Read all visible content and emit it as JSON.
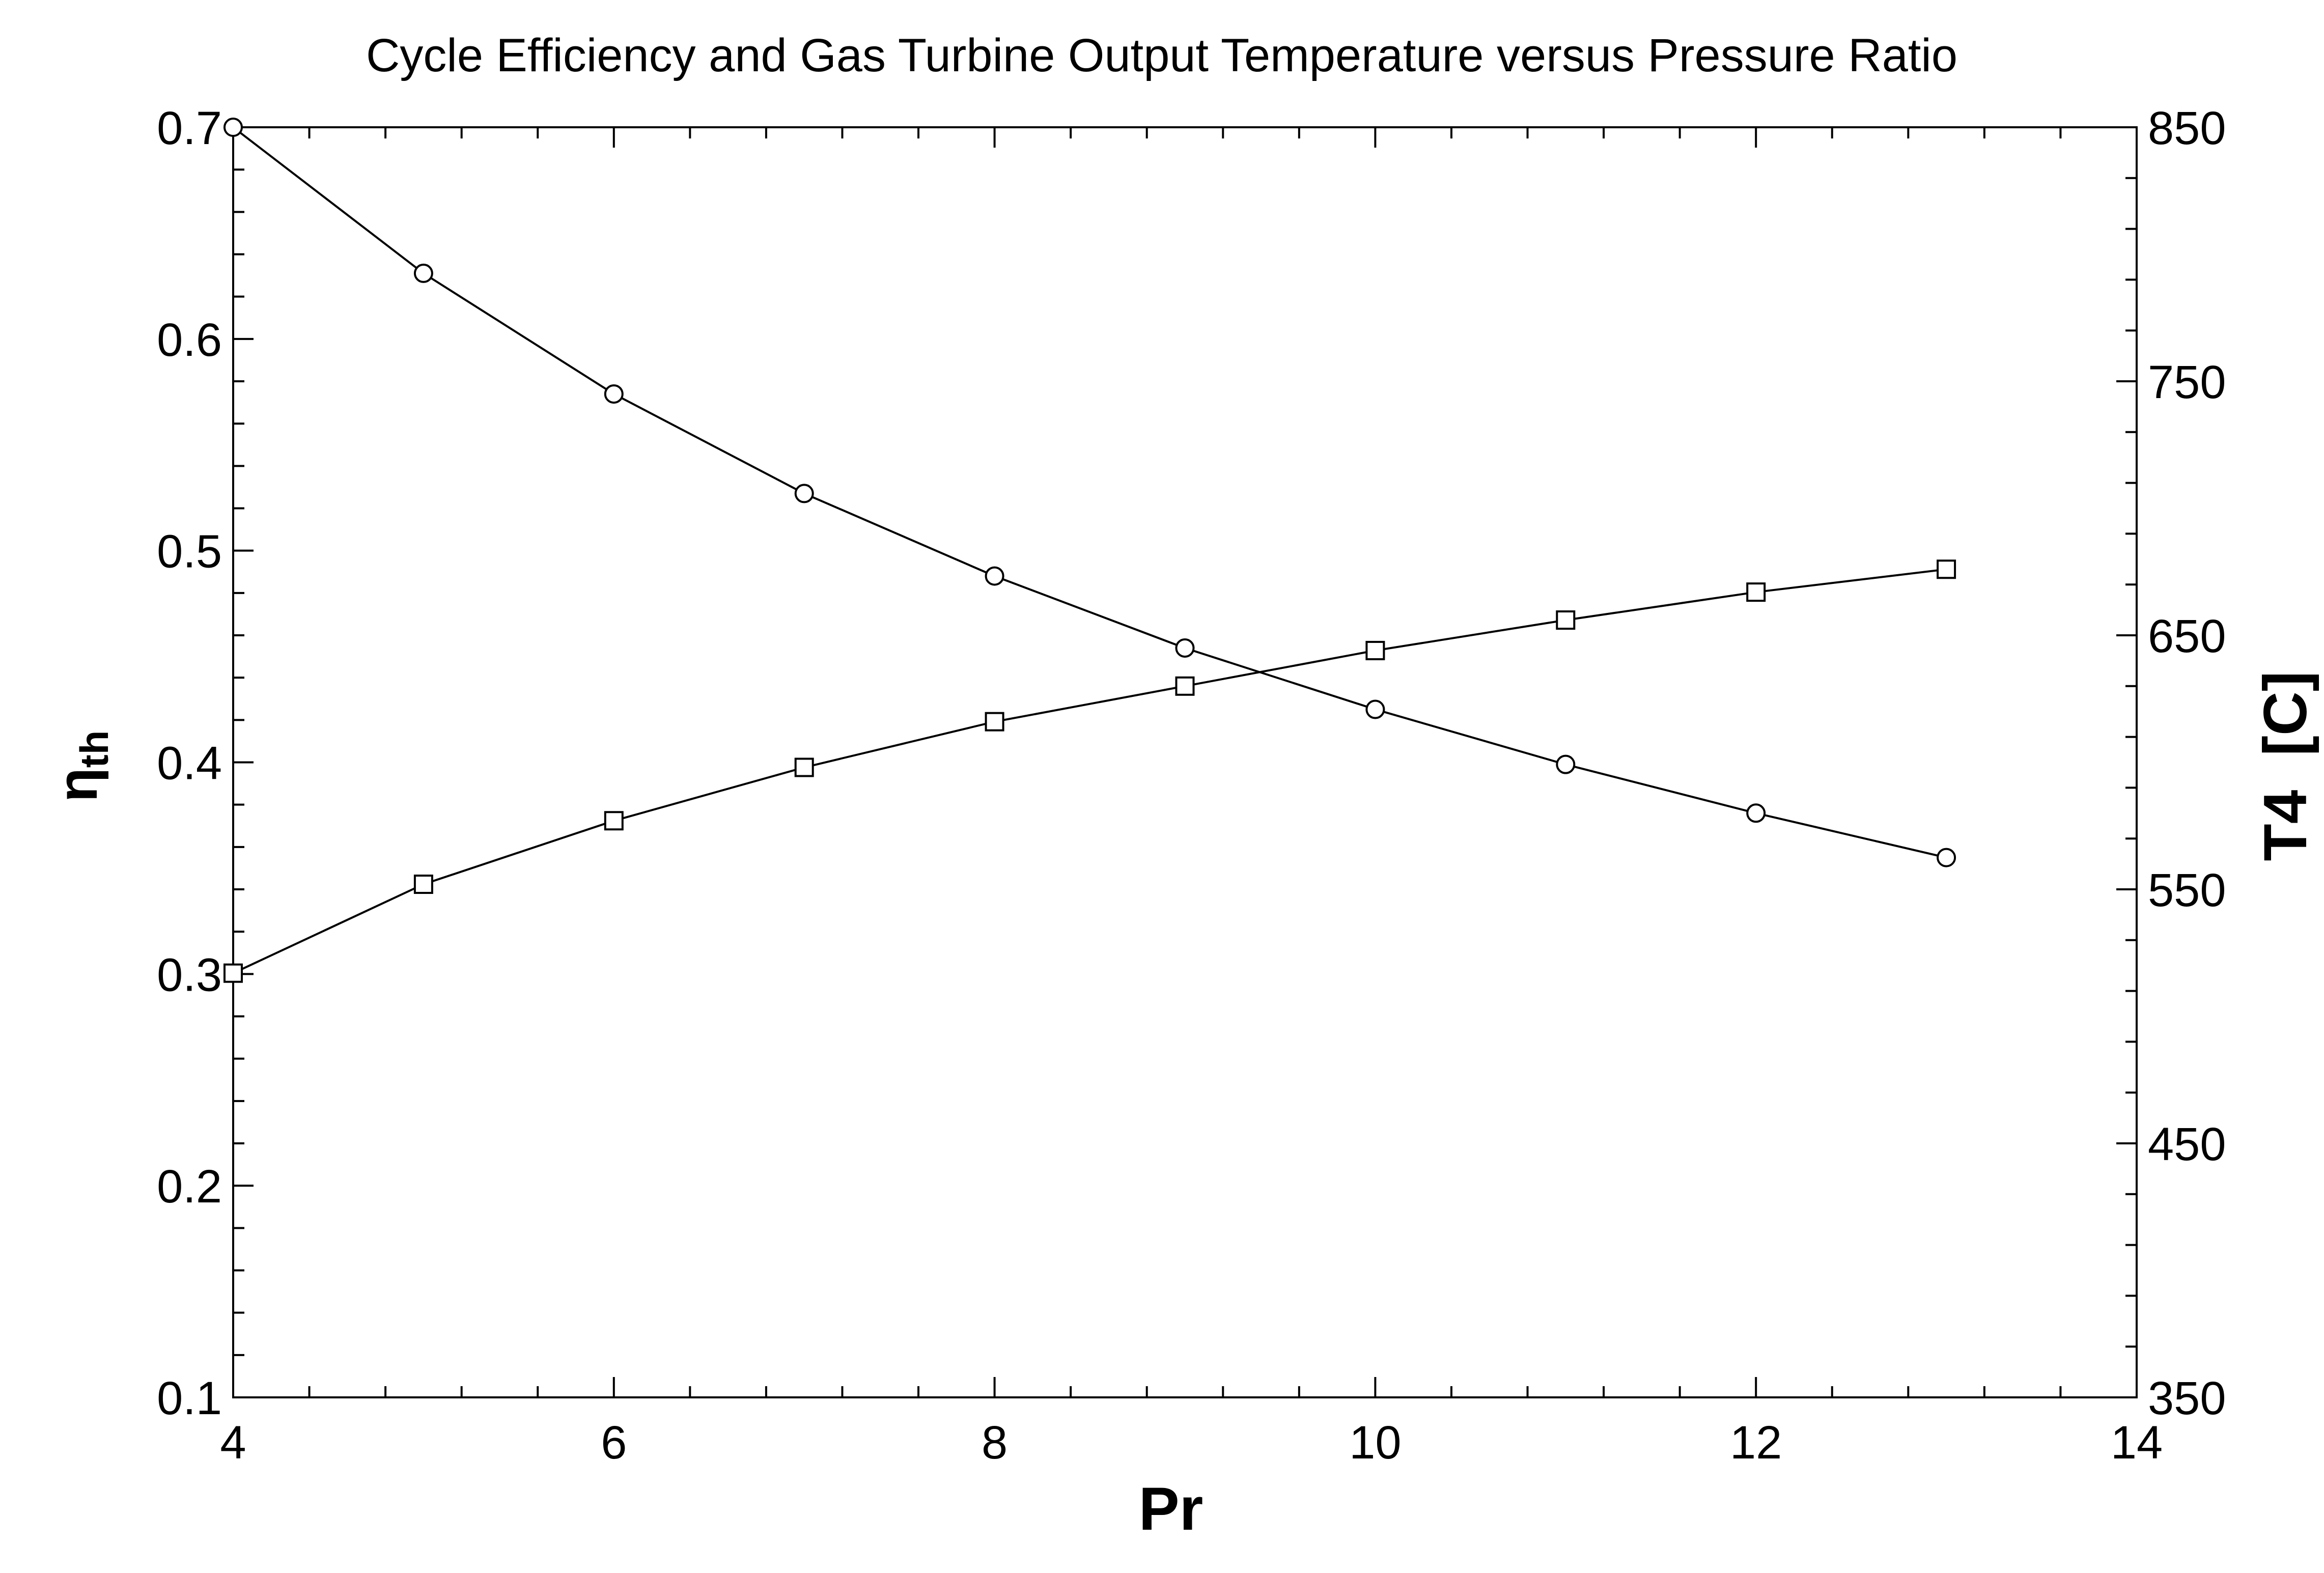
{
  "chart_data": {
    "type": "line",
    "title": "Cycle Efficiency and Gas Turbine Output Temperature versus Pressure Ratio",
    "xlabel": "Pr",
    "ylabel_left_main": "η",
    "ylabel_left_sub": "th",
    "ylabel_right": "T4  [C]",
    "xlim": [
      4,
      14
    ],
    "ylim_left": [
      0.1,
      0.7
    ],
    "ylim_right": [
      350,
      850
    ],
    "x_ticks": [
      "4",
      "6",
      "8",
      "10",
      "12",
      "14"
    ],
    "y_left_ticks": [
      "0.1",
      "0.2",
      "0.3",
      "0.4",
      "0.5",
      "0.6",
      "0.7"
    ],
    "y_right_ticks": [
      "350",
      "450",
      "550",
      "650",
      "750",
      "850"
    ],
    "grid": false,
    "series": [
      {
        "axis": "left",
        "marker": "circle",
        "x": [
          4,
          5,
          6,
          7,
          8,
          9,
          10,
          11,
          12,
          13
        ],
        "values": [
          0.7,
          0.631,
          0.574,
          0.527,
          0.488,
          0.454,
          0.425,
          0.399,
          0.376,
          0.355
        ]
      },
      {
        "axis": "right",
        "marker": "square",
        "x": [
          4,
          5,
          6,
          7,
          8,
          9,
          10,
          11,
          12,
          13
        ],
        "values": [
          517,
          552,
          577,
          598,
          616,
          630,
          644,
          656,
          667,
          676
        ]
      }
    ]
  }
}
